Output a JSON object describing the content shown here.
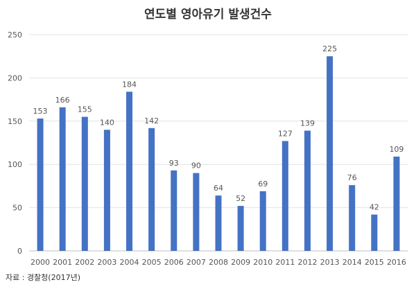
{
  "chart_data": {
    "type": "bar",
    "title": "연도별 영아유기 발생건수",
    "categories": [
      "2000",
      "2001",
      "2002",
      "2003",
      "2004",
      "2005",
      "2006",
      "2007",
      "2008",
      "2009",
      "2010",
      "2011",
      "2012",
      "2013",
      "2014",
      "2015",
      "2016"
    ],
    "values": [
      153,
      166,
      155,
      140,
      184,
      142,
      93,
      90,
      64,
      52,
      69,
      127,
      139,
      225,
      76,
      42,
      109
    ],
    "ylim": [
      0,
      250
    ],
    "yticks": [
      0,
      50,
      100,
      150,
      200,
      250
    ],
    "grid": true,
    "bar_color": "#4472c4",
    "data_labels": true
  },
  "source_note": "자료 : 경찰청(2017년)"
}
